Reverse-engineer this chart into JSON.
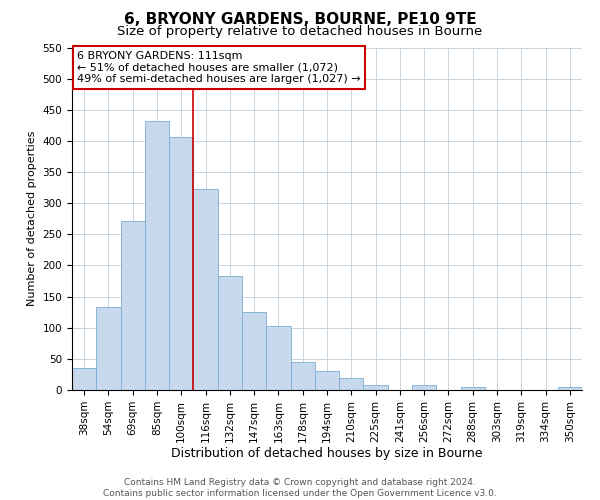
{
  "title": "6, BRYONY GARDENS, BOURNE, PE10 9TE",
  "subtitle": "Size of property relative to detached houses in Bourne",
  "xlabel": "Distribution of detached houses by size in Bourne",
  "ylabel": "Number of detached properties",
  "bar_labels": [
    "38sqm",
    "54sqm",
    "69sqm",
    "85sqm",
    "100sqm",
    "116sqm",
    "132sqm",
    "147sqm",
    "163sqm",
    "178sqm",
    "194sqm",
    "210sqm",
    "225sqm",
    "241sqm",
    "256sqm",
    "272sqm",
    "288sqm",
    "303sqm",
    "319sqm",
    "334sqm",
    "350sqm"
  ],
  "bar_heights": [
    35,
    133,
    272,
    432,
    406,
    322,
    183,
    126,
    102,
    45,
    30,
    20,
    8,
    0,
    8,
    0,
    5,
    0,
    0,
    0,
    5
  ],
  "bar_color": "#c8d9ee",
  "bar_edge_color": "#7aadd4",
  "vline_color": "#cc0000",
  "annotation_title": "6 BRYONY GARDENS: 111sqm",
  "annotation_line1": "← 51% of detached houses are smaller (1,072)",
  "annotation_line2": "49% of semi-detached houses are larger (1,027) →",
  "annotation_box_color": "#ffffff",
  "annotation_box_edge": "#cc0000",
  "ylim": [
    0,
    550
  ],
  "footer1": "Contains HM Land Registry data © Crown copyright and database right 2024.",
  "footer2": "Contains public sector information licensed under the Open Government Licence v3.0.",
  "title_fontsize": 11,
  "subtitle_fontsize": 9.5,
  "xlabel_fontsize": 9,
  "ylabel_fontsize": 8,
  "tick_fontsize": 7.5,
  "annotation_fontsize": 8,
  "footer_fontsize": 6.5,
  "grid_color": "#c8d4e0"
}
